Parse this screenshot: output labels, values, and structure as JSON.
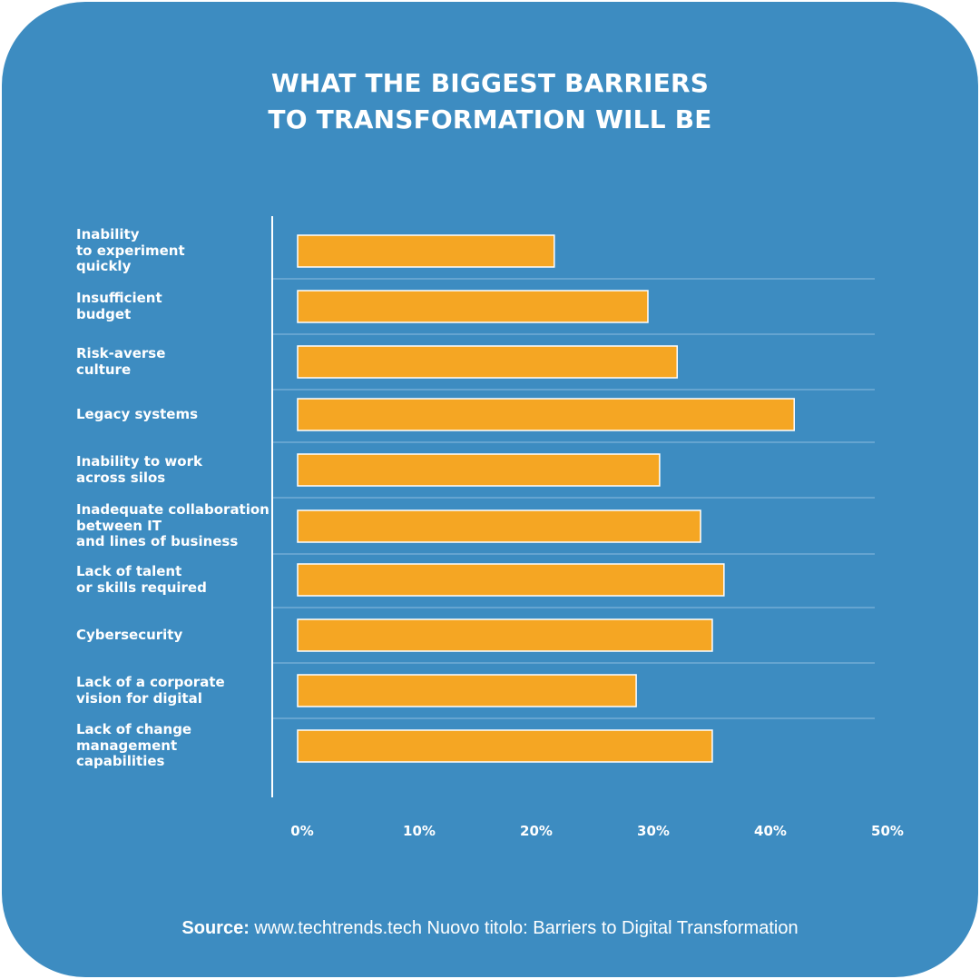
{
  "colors": {
    "card_background": "#3d8cc1",
    "bar_fill": "#f5a623",
    "bar_stroke": "#ffffff",
    "text": "#ffffff",
    "gridline": "#8dbde0"
  },
  "chart_data": {
    "type": "bar",
    "orientation": "horizontal",
    "title": "WHAT THE BIGGEST BARRIERS TO TRANSFORMATION WILL BE",
    "title_lines": [
      "WHAT THE BIGGEST BARRIERS",
      "TO TRANSFORMATION WILL BE"
    ],
    "categories": [
      "Inability\nto experiment\nquickly",
      "Insufficient\nbudget",
      "Risk-averse\nculture",
      "Legacy systems",
      "Inability to work\nacross silos",
      "Inadequate collaboration\nbetween IT\nand lines of business",
      "Lack of talent\nor skills required",
      "Cybersecurity",
      "Lack of a corporate\nvision for digital",
      "Lack of change\nmanagement\ncapabilities"
    ],
    "values": [
      22,
      30,
      32.5,
      42.5,
      31,
      34.5,
      36.5,
      35.5,
      29,
      35.5
    ],
    "xlim": [
      0,
      50
    ],
    "x_ticks": [
      0,
      10,
      20,
      30,
      40,
      50
    ],
    "x_tick_labels": [
      "0%",
      "10%",
      "20%",
      "30%",
      "40%",
      "50%"
    ],
    "grid": "horizontal separators between bars",
    "legend": "none"
  },
  "source": {
    "label": "Source:",
    "text": " www.techtrends.tech Nuovo titolo: Barriers to Digital Transformation"
  }
}
